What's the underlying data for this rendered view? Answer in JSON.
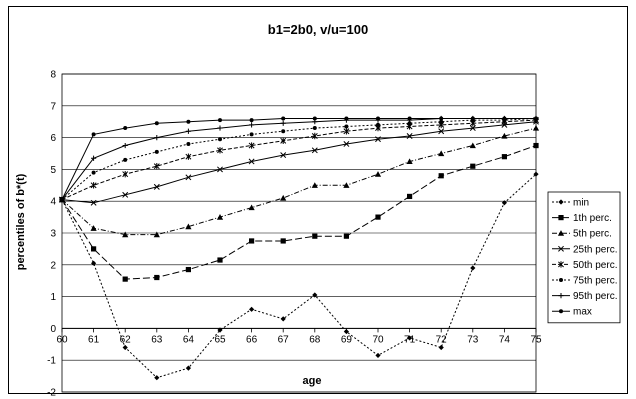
{
  "chart_data": {
    "type": "line",
    "title": "b1=2b0, v/u=100",
    "xlabel": "age",
    "ylabel": "percentiles of b*(t)",
    "xlim": [
      60,
      75
    ],
    "ylim": [
      -2,
      8
    ],
    "x": [
      60,
      61,
      62,
      63,
      64,
      65,
      66,
      67,
      68,
      69,
      70,
      71,
      72,
      73,
      74,
      75
    ],
    "yticks": [
      "-2",
      "-1",
      "0",
      "1",
      "2",
      "3",
      "4",
      "5",
      "6",
      "7",
      "8"
    ],
    "xticks": [
      "60",
      "61",
      "62",
      "63",
      "64",
      "65",
      "66",
      "67",
      "68",
      "69",
      "70",
      "71",
      "72",
      "73",
      "74",
      "75"
    ],
    "grid": "horizontal",
    "legend_position": "right",
    "series": [
      {
        "name": "min",
        "marker": "diamond",
        "dash": "2,2",
        "values": [
          4.05,
          2.05,
          -0.6,
          -1.55,
          -1.25,
          -0.05,
          0.6,
          0.3,
          1.05,
          -0.1,
          -0.85,
          -0.3,
          -0.6,
          1.9,
          3.95,
          4.85
        ]
      },
      {
        "name": "1th perc.",
        "marker": "square",
        "dash": "7,3",
        "values": [
          4.05,
          2.5,
          1.55,
          1.6,
          1.85,
          2.15,
          2.75,
          2.75,
          2.9,
          2.9,
          3.5,
          4.15,
          4.8,
          5.1,
          5.4,
          5.75
        ]
      },
      {
        "name": "5th perc.",
        "marker": "triangle",
        "dash": "5,2,1,2",
        "values": [
          4.05,
          3.15,
          2.95,
          2.95,
          3.2,
          3.5,
          3.8,
          4.1,
          4.5,
          4.5,
          4.85,
          5.25,
          5.5,
          5.75,
          6.05,
          6.3
        ]
      },
      {
        "name": "25th perc.",
        "marker": "x",
        "dash": "",
        "values": [
          4.05,
          3.95,
          4.2,
          4.45,
          4.75,
          5.0,
          5.25,
          5.45,
          5.6,
          5.8,
          5.95,
          6.05,
          6.2,
          6.3,
          6.4,
          6.5
        ]
      },
      {
        "name": "50th perc.",
        "marker": "star",
        "dash": "4,2",
        "values": [
          4.05,
          4.5,
          4.85,
          5.1,
          5.4,
          5.6,
          5.75,
          5.9,
          6.05,
          6.2,
          6.3,
          6.35,
          6.4,
          6.45,
          6.5,
          6.55
        ]
      },
      {
        "name": "75th perc.",
        "marker": "dot",
        "dash": "2,2",
        "values": [
          4.05,
          4.9,
          5.3,
          5.55,
          5.8,
          5.95,
          6.1,
          6.2,
          6.3,
          6.35,
          6.4,
          6.45,
          6.5,
          6.55,
          6.55,
          6.6
        ]
      },
      {
        "name": "95th perc.",
        "marker": "plus",
        "dash": "",
        "values": [
          4.05,
          5.35,
          5.75,
          6.0,
          6.2,
          6.3,
          6.4,
          6.45,
          6.5,
          6.55,
          6.55,
          6.55,
          6.6,
          6.6,
          6.6,
          6.6
        ]
      },
      {
        "name": "max",
        "marker": "dot",
        "dash": "",
        "values": [
          4.05,
          6.1,
          6.3,
          6.45,
          6.5,
          6.55,
          6.55,
          6.6,
          6.6,
          6.6,
          6.6,
          6.6,
          6.6,
          6.6,
          6.6,
          6.6
        ]
      }
    ],
    "colors": {
      "line": "#000000",
      "grid": "#000000",
      "background": "#ffffff"
    }
  }
}
